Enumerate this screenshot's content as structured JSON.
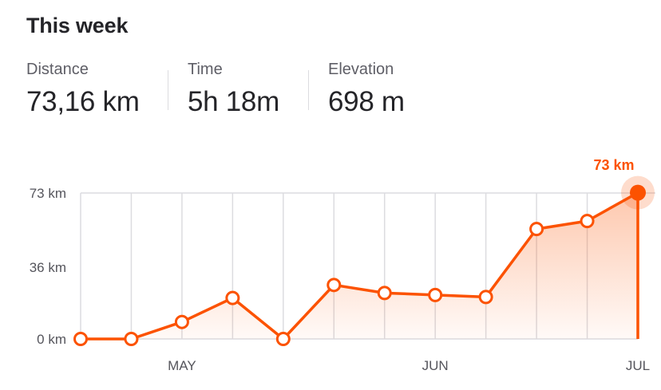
{
  "header": {
    "title": "This week"
  },
  "stats": [
    {
      "label": "Distance",
      "value": "73,16 km"
    },
    {
      "label": "Time",
      "value": "5h 18m"
    },
    {
      "label": "Elevation",
      "value": "698 m"
    }
  ],
  "chart_data": {
    "type": "area",
    "title": "",
    "xlabel": "",
    "ylabel": "",
    "x_labels": [
      {
        "label": "MAY",
        "index": 2
      },
      {
        "label": "JUN",
        "index": 7
      },
      {
        "label": "JUL",
        "index": 11
      }
    ],
    "y_ticks": [
      {
        "label": "73 km",
        "value": 73
      },
      {
        "label": "36 km",
        "value": 36
      },
      {
        "label": "0 km",
        "value": 0
      }
    ],
    "ylim": [
      0,
      73
    ],
    "series": [
      {
        "values": [
          0,
          0,
          8.5,
          20.5,
          0,
          27,
          23,
          22,
          21,
          55,
          59,
          73.16
        ]
      }
    ],
    "current_label": "73 km",
    "grid": true,
    "accent_color": "#fc5200"
  }
}
